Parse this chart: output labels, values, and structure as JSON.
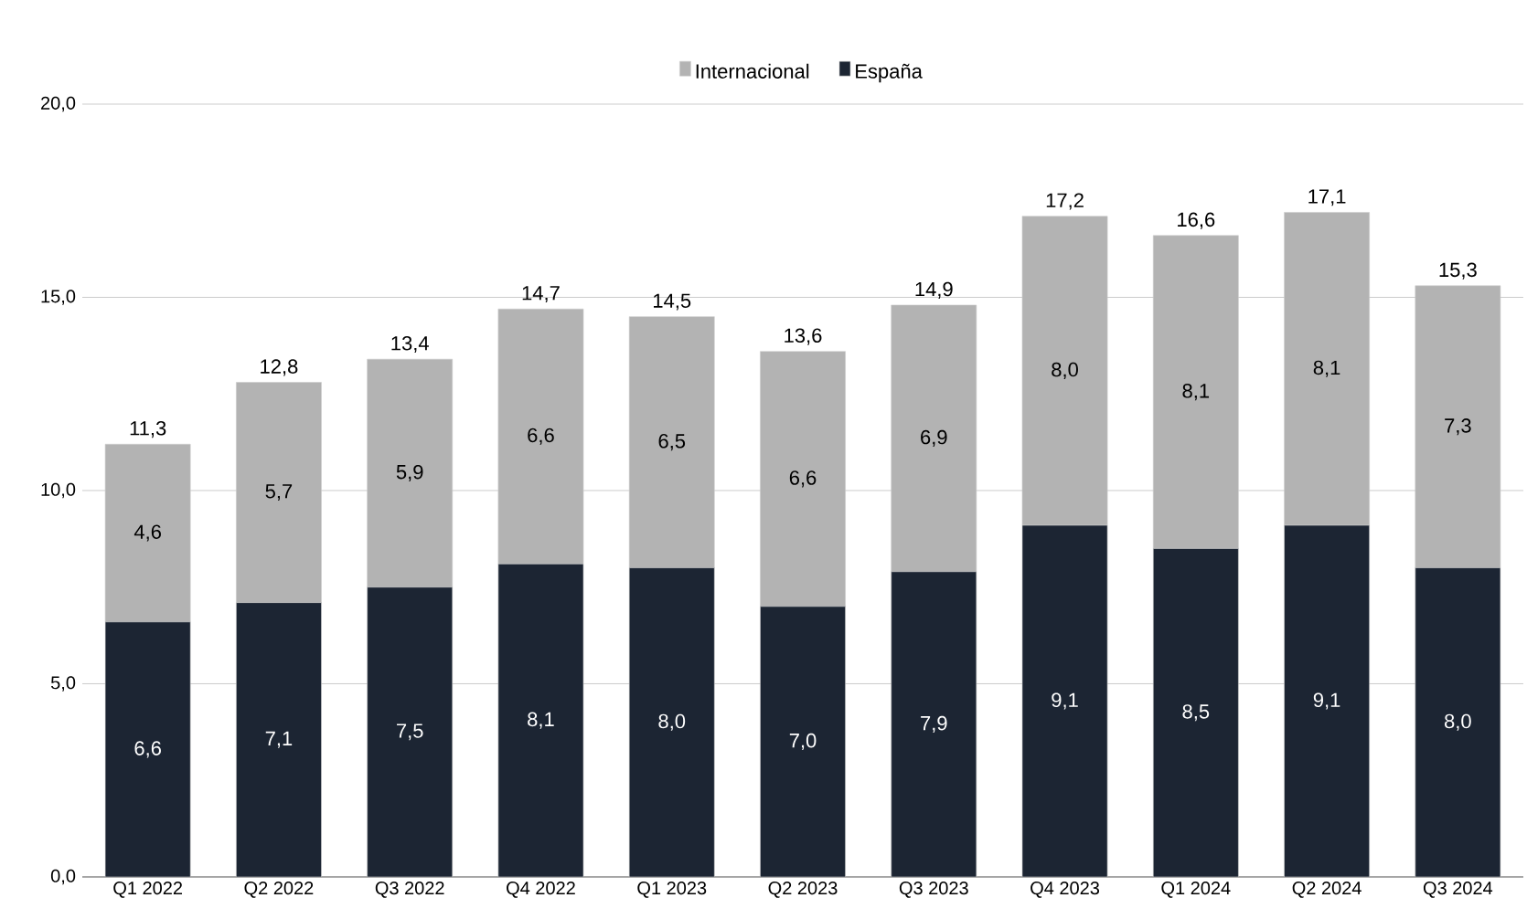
{
  "chart_data": {
    "type": "bar",
    "stacked": true,
    "categories": [
      "Q1 2022",
      "Q2 2022",
      "Q3 2022",
      "Q4 2022",
      "Q1 2023",
      "Q2 2023",
      "Q3 2023",
      "Q4 2023",
      "Q1 2024",
      "Q2 2024",
      "Q3 2024"
    ],
    "series": [
      {
        "name": "España",
        "color": "#1c2533",
        "values": [
          6.6,
          7.1,
          7.5,
          8.1,
          8.0,
          7.0,
          7.9,
          9.1,
          8.5,
          9.1,
          8.0
        ],
        "value_labels": [
          "6,6",
          "7,1",
          "7,5",
          "8,1",
          "8,0",
          "7,0",
          "7,9",
          "9,1",
          "8,5",
          "9,1",
          "8,0"
        ]
      },
      {
        "name": "Internacional",
        "color": "#b3b3b3",
        "values": [
          4.6,
          5.7,
          5.9,
          6.6,
          6.5,
          6.6,
          6.9,
          8.0,
          8.1,
          8.1,
          7.3
        ],
        "value_labels": [
          "4,6",
          "5,7",
          "5,9",
          "6,6",
          "6,5",
          "6,6",
          "6,9",
          "8,0",
          "8,1",
          "8,1",
          "7,3"
        ]
      }
    ],
    "totals": [
      "11,3",
      "12,8",
      "13,4",
      "14,7",
      "14,5",
      "13,6",
      "14,9",
      "17,2",
      "16,6",
      "17,1",
      "15,3"
    ],
    "ylim": [
      0,
      20
    ],
    "yticks": [
      {
        "value": 0,
        "label": "0,0"
      },
      {
        "value": 5,
        "label": "5,0"
      },
      {
        "value": 10,
        "label": "10,0"
      },
      {
        "value": 15,
        "label": "15,0"
      },
      {
        "value": 20,
        "label": "20,0"
      }
    ],
    "grid": "y",
    "legend": "top"
  }
}
